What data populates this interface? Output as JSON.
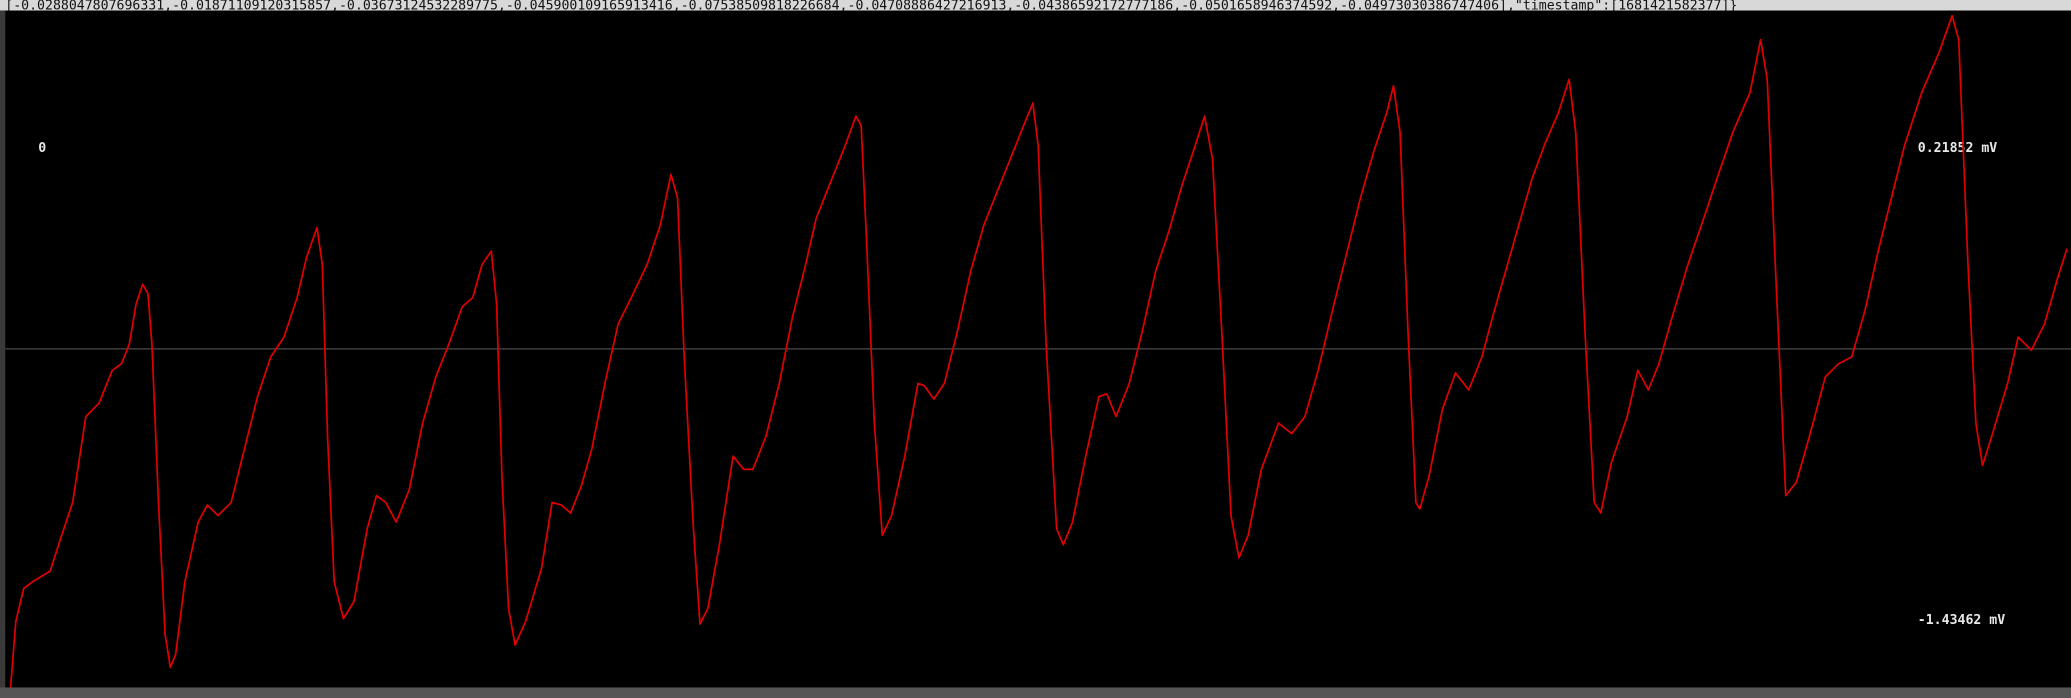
{
  "header_text": "[-0.0288047807696331,-0.01871109120315857,-0.03673124532289775,-0.045900109165913416,-0.07538509818226684,-0.04708886427216913,-0.04386592172777186,-0.0501658946374592,-0.04973030386747406],\"timestamp\":[1681421582377]}",
  "chart_data": {
    "type": "line",
    "start_label": "0",
    "annotations": [
      {
        "value": 0.21852,
        "label": "0.21852 mV"
      },
      {
        "value": -1.43462,
        "label": "-1.43462 mV"
      }
    ],
    "reference_line": -0.485,
    "color": "#e00000",
    "xlim": [
      0,
      1568
    ],
    "ylim": [
      0.737,
      -1.708
    ],
    "x": [
      8,
      12,
      18,
      25,
      38,
      45,
      55,
      65,
      75,
      85,
      92,
      98,
      103,
      108,
      112,
      115,
      120,
      125,
      129,
      133,
      140,
      150,
      157,
      165,
      175,
      185,
      195,
      205,
      215,
      225,
      232,
      240,
      244,
      248,
      253,
      260,
      268,
      278,
      285,
      292,
      300,
      310,
      320,
      330,
      340,
      350,
      358,
      365,
      372,
      376,
      380,
      385,
      390,
      398,
      410,
      418,
      425,
      432,
      440,
      448,
      458,
      468,
      478,
      490,
      500,
      508,
      513,
      518,
      525,
      530,
      536,
      545,
      555,
      563,
      570,
      580,
      590,
      600,
      610,
      618,
      628,
      640,
      648,
      652,
      656,
      662,
      668,
      675,
      685,
      695,
      700,
      707,
      715,
      725,
      735,
      745,
      755,
      765,
      775,
      782,
      786,
      792,
      800,
      805,
      812,
      822,
      832,
      838,
      845,
      855,
      865,
      875,
      885,
      895,
      905,
      912,
      918,
      925,
      932,
      938,
      945,
      955,
      968,
      978,
      988,
      998,
      1010,
      1020,
      1030,
      1040,
      1050,
      1055,
      1060,
      1066,
      1072,
      1075,
      1082,
      1092,
      1102,
      1112,
      1122,
      1130,
      1140,
      1150,
      1160,
      1170,
      1180,
      1188,
      1193,
      1200,
      1207,
      1212,
      1220,
      1232,
      1240,
      1248,
      1256,
      1266,
      1278,
      1290,
      1300,
      1312,
      1325,
      1333,
      1338,
      1345,
      1352,
      1360,
      1370,
      1382,
      1392,
      1402,
      1412,
      1422,
      1432,
      1442,
      1455,
      1468,
      1478,
      1483,
      1490,
      1496,
      1501,
      1508,
      1520,
      1528,
      1538,
      1548,
      1558,
      1565
    ],
    "values": [
      -1.671,
      -1.439,
      -1.324,
      -1.3,
      -1.263,
      -1.162,
      -1.023,
      -0.722,
      -0.675,
      -0.56,
      -0.537,
      -0.467,
      -0.328,
      -0.259,
      -0.291,
      -0.467,
      -1.023,
      -1.486,
      -1.601,
      -1.555,
      -1.3,
      -1.092,
      -1.032,
      -1.069,
      -1.023,
      -0.837,
      -0.652,
      -0.513,
      -0.444,
      -0.305,
      -0.166,
      -0.06,
      -0.189,
      -0.791,
      -1.3,
      -1.43,
      -1.37,
      -1.115,
      -0.999,
      -1.023,
      -1.092,
      -0.976,
      -0.745,
      -0.583,
      -0.467,
      -0.337,
      -0.305,
      -0.189,
      -0.143,
      -0.328,
      -0.93,
      -1.393,
      -1.523,
      -1.439,
      -1.254,
      -1.023,
      -1.032,
      -1.06,
      -0.967,
      -0.837,
      -0.606,
      -0.398,
      -0.305,
      -0.189,
      -0.05,
      0.126,
      0.043,
      -0.513,
      -1.115,
      -1.449,
      -1.393,
      -1.162,
      -0.861,
      -0.907,
      -0.907,
      -0.791,
      -0.606,
      -0.374,
      -0.189,
      -0.027,
      0.089,
      0.228,
      0.33,
      0.297,
      -0.097,
      -0.745,
      -1.138,
      -1.069,
      -0.861,
      -0.606,
      -0.615,
      -0.661,
      -0.606,
      -0.421,
      -0.212,
      -0.05,
      0.066,
      0.181,
      0.297,
      0.376,
      0.228,
      -0.467,
      -1.115,
      -1.171,
      -1.092,
      -0.861,
      -0.652,
      -0.643,
      -0.722,
      -0.606,
      -0.421,
      -0.212,
      -0.073,
      0.089,
      0.228,
      0.33,
      0.181,
      -0.421,
      -1.069,
      -1.217,
      -1.138,
      -0.907,
      -0.745,
      -0.782,
      -0.722,
      -0.56,
      -0.328,
      -0.143,
      0.043,
      0.205,
      0.343,
      0.436,
      0.274,
      -0.421,
      -1.023,
      -1.046,
      -0.93,
      -0.698,
      -0.569,
      -0.629,
      -0.513,
      -0.374,
      -0.212,
      -0.05,
      0.112,
      0.237,
      0.343,
      0.459,
      0.274,
      -0.421,
      -1.023,
      -1.06,
      -0.884,
      -0.722,
      -0.56,
      -0.629,
      -0.537,
      -0.374,
      -0.189,
      -0.027,
      0.112,
      0.274,
      0.413,
      0.598,
      0.459,
      -0.282,
      -0.999,
      -0.953,
      -0.791,
      -0.583,
      -0.537,
      -0.513,
      -0.351,
      -0.143,
      0.043,
      0.228,
      0.413,
      0.552,
      0.682,
      0.598,
      -0.189,
      -0.745,
      -0.893,
      -0.791,
      -0.606,
      -0.444,
      -0.49,
      -0.397,
      -0.235,
      -0.134
    ]
  }
}
